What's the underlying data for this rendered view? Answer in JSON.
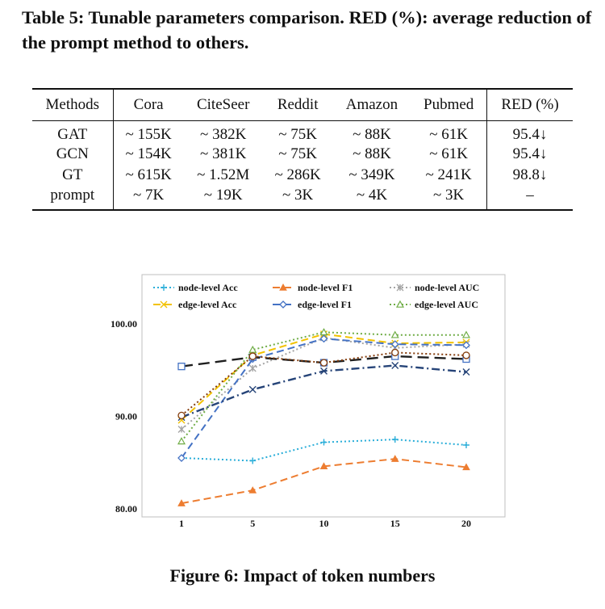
{
  "table": {
    "caption": "Table 5: Tunable parameters comparison. RED (%): average reduction of the prompt method to others.",
    "headers": [
      "Methods",
      "Cora",
      "CiteSeer",
      "Reddit",
      "Amazon",
      "Pubmed",
      "RED (%)"
    ],
    "rows": [
      [
        "GAT",
        "~ 155K",
        "~ 382K",
        "~ 75K",
        "~ 88K",
        "~ 61K",
        "95.4↓"
      ],
      [
        "GCN",
        "~ 154K",
        "~ 381K",
        "~ 75K",
        "~ 88K",
        "~ 61K",
        "95.4↓"
      ],
      [
        "GT",
        "~ 615K",
        "~ 1.52M",
        "~ 286K",
        "~ 349K",
        "~ 241K",
        "98.8↓"
      ],
      [
        "prompt",
        "~ 7K",
        "~ 19K",
        "~ 3K",
        "~ 4K",
        "~ 3K",
        "–"
      ]
    ]
  },
  "figure": {
    "caption": "Figure 6: Impact of token numbers"
  },
  "chart_data": {
    "type": "line",
    "title": "",
    "xlabel": "",
    "ylabel": "",
    "categories": [
      "1",
      "5",
      "10",
      "15",
      "20"
    ],
    "ylim": [
      80,
      100
    ],
    "yticks": [
      "80.00",
      "90.00",
      "100.00"
    ],
    "legend_position": "top",
    "grid": false,
    "series": [
      {
        "name": "node-level Acc",
        "color": "#2aaed9",
        "style": "dotted",
        "marker": "plus",
        "values": [
          85.5,
          85.2,
          87.2,
          87.5,
          86.9
        ]
      },
      {
        "name": "node-level F1",
        "color": "#ed7d31",
        "style": "dashed",
        "marker": "triangle",
        "values": [
          80.6,
          82.0,
          84.6,
          85.4,
          84.5
        ]
      },
      {
        "name": "node-level AUC",
        "color": "#a5a5a5",
        "style": "dotted",
        "marker": "star",
        "values": [
          88.6,
          95.2,
          98.5,
          97.4,
          97.8
        ]
      },
      {
        "name": "edge-level Acc",
        "color": "#f2c200",
        "style": "dashed",
        "marker": "x",
        "values": [
          89.6,
          96.6,
          98.9,
          97.9,
          98.0
        ]
      },
      {
        "name": "edge-level F1",
        "color": "#4472c4",
        "style": "dashed",
        "marker": "diamond",
        "values": [
          85.5,
          96.2,
          98.4,
          97.8,
          97.7
        ]
      },
      {
        "name": "edge-level AUC",
        "color": "#70ad47",
        "style": "dotted",
        "marker": "triangle-open",
        "values": [
          87.3,
          97.2,
          99.1,
          98.8,
          98.8
        ]
      },
      {
        "name": "",
        "color": "#1f1f1f",
        "style": "long-dashed",
        "marker": "square-open",
        "values": [
          95.4,
          96.4,
          95.8,
          96.5,
          96.2
        ]
      },
      {
        "name": "",
        "color": "#264478",
        "style": "dash-dot",
        "marker": "x",
        "values": [
          89.9,
          92.9,
          94.9,
          95.5,
          94.8
        ]
      },
      {
        "name": "",
        "color": "#843c0c",
        "style": "dotted",
        "marker": "circle-open",
        "values": [
          90.1,
          96.5,
          95.8,
          96.9,
          96.6
        ]
      }
    ]
  }
}
